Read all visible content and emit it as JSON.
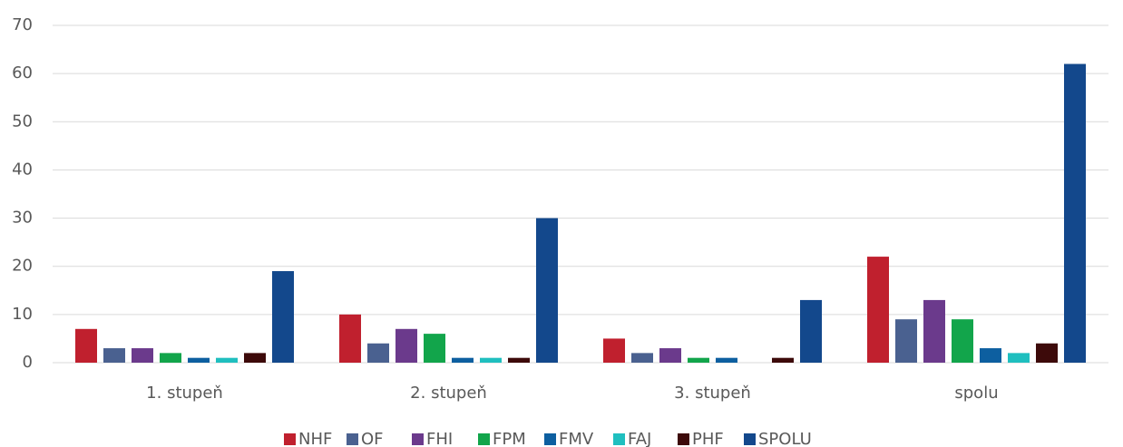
{
  "chart_data": {
    "type": "bar",
    "categories": [
      "1. stupeň",
      "2. stupeň",
      "3. stupeň",
      "spolu"
    ],
    "series": [
      {
        "name": "NHF",
        "color": "#c0202e",
        "values": [
          7,
          10,
          5,
          22
        ]
      },
      {
        "name": "OF",
        "color": "#4a6190",
        "values": [
          3,
          4,
          2,
          9
        ]
      },
      {
        "name": "FHI",
        "color": "#6b3a8c",
        "values": [
          3,
          7,
          3,
          13
        ]
      },
      {
        "name": "FPM",
        "color": "#12a54b",
        "values": [
          2,
          6,
          1,
          9
        ]
      },
      {
        "name": "FMV",
        "color": "#0d5fa0",
        "values": [
          1,
          1,
          1,
          3
        ]
      },
      {
        "name": "FAJ",
        "color": "#1fbfbf",
        "values": [
          1,
          1,
          0,
          2
        ]
      },
      {
        "name": "PHF",
        "color": "#3d0a0a",
        "values": [
          2,
          1,
          1,
          4
        ]
      },
      {
        "name": "SPOLU",
        "color": "#13488c",
        "values": [
          19,
          30,
          13,
          62
        ]
      }
    ],
    "ylim": [
      0,
      70
    ],
    "yticks": [
      0,
      10,
      20,
      30,
      40,
      50,
      60,
      70
    ],
    "grid": true,
    "legend": "bottom"
  }
}
